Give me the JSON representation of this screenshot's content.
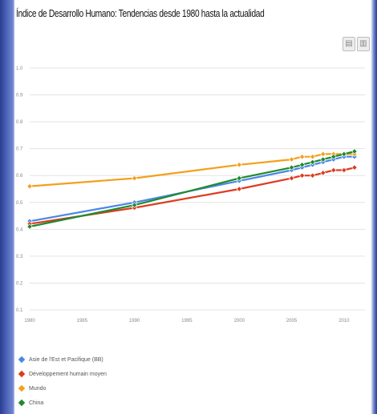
{
  "page": {
    "title": "Índice de Desarrollo Humano: Tendencias desde 1980 hasta la actualidad"
  },
  "toolbar": {
    "icons": [
      "save-icon",
      "print-icon"
    ],
    "save_glyph": "▤",
    "print_glyph": "▥"
  },
  "chart_data": {
    "type": "line",
    "title": "Índice de Desarrollo Humano: Tendencias desde 1980 hasta la actualidad",
    "xlabel": "",
    "ylabel": "",
    "xlim": [
      1980,
      2012
    ],
    "ylim": [
      0.1,
      1.0
    ],
    "x_ticks": [
      1980,
      1985,
      1990,
      1995,
      2000,
      2005,
      2010
    ],
    "x_tick_labels": [
      "1980",
      "1985",
      "1990",
      "1995",
      "2000",
      "2005",
      "2010"
    ],
    "y_ticks": [
      0.1,
      0.2,
      0.3,
      0.4,
      0.5,
      0.6,
      0.7,
      0.8,
      0.9,
      1.0
    ],
    "y_tick_labels": [
      "0.1",
      "0.2",
      "0.3",
      "0.4",
      "0.5",
      "0.6",
      "0.7",
      "0.8",
      "0.9",
      "1.0"
    ],
    "grid": true,
    "legend_position": "bottom-left",
    "x": [
      1980,
      1990,
      2000,
      2005,
      2006,
      2007,
      2008,
      2009,
      2010,
      2011
    ],
    "series": [
      {
        "name": "Asie de l'Est et Pacifique (BB)",
        "color": "#4a86e8",
        "marker": "diamond",
        "values": [
          0.43,
          0.5,
          0.58,
          0.62,
          0.63,
          0.64,
          0.65,
          0.66,
          0.67,
          0.67
        ]
      },
      {
        "name": "Développement humain moyen",
        "color": "#dd3b1f",
        "marker": "diamond",
        "values": [
          0.42,
          0.48,
          0.55,
          0.59,
          0.6,
          0.6,
          0.61,
          0.62,
          0.62,
          0.63
        ]
      },
      {
        "name": "Mundo",
        "color": "#f3a01c",
        "marker": "diamond",
        "values": [
          0.56,
          0.59,
          0.64,
          0.66,
          0.67,
          0.67,
          0.68,
          0.68,
          0.68,
          0.68
        ]
      },
      {
        "name": "China",
        "color": "#1e8a2e",
        "marker": "diamond",
        "values": [
          0.41,
          0.49,
          0.59,
          0.63,
          0.64,
          0.65,
          0.66,
          0.67,
          0.68,
          0.69
        ]
      }
    ]
  }
}
